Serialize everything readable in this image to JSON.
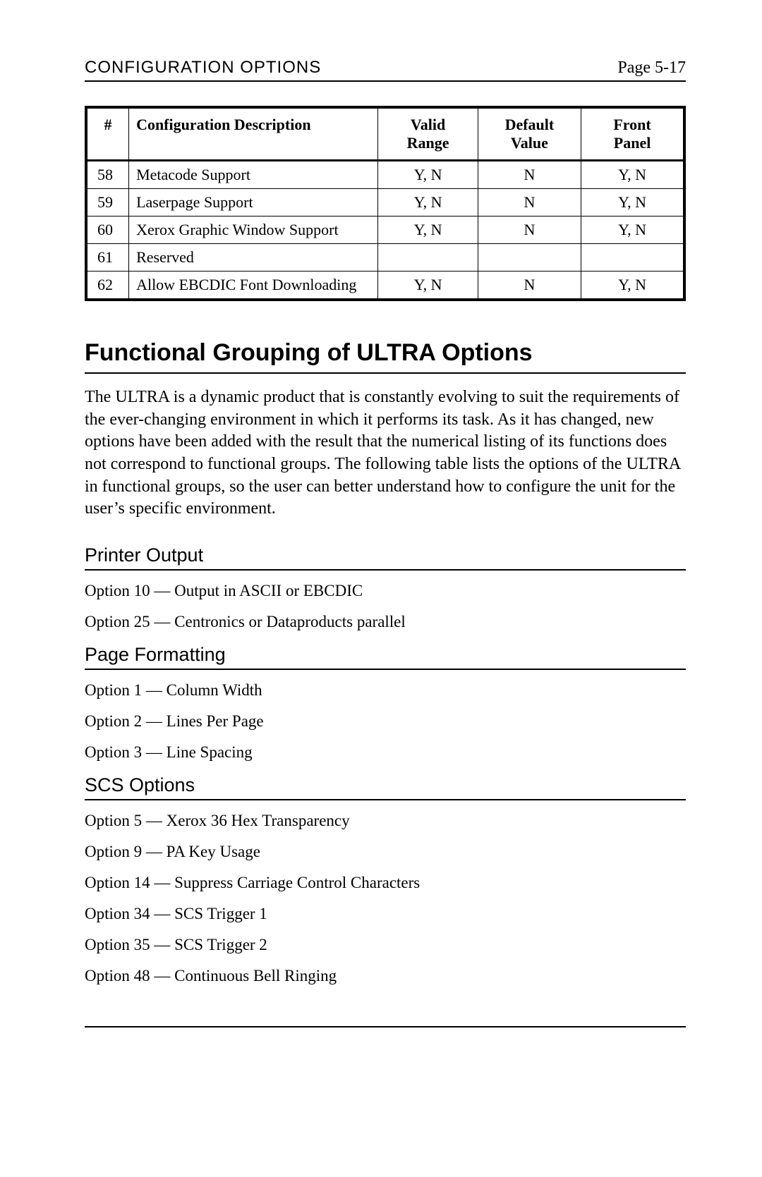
{
  "header": {
    "title": "CONFIGURATION OPTIONS",
    "page_label": "Page 5-17"
  },
  "config_table": {
    "columns": {
      "num": "#",
      "desc": "Configuration Description",
      "range_l1": "Valid",
      "range_l2": "Range",
      "default_l1": "Default",
      "default_l2": "Value",
      "front_l1": "Front",
      "front_l2": "Panel"
    },
    "rows": [
      {
        "num": "58",
        "desc": "Metacode Support",
        "range": "Y, N",
        "default": "N",
        "front": "Y, N"
      },
      {
        "num": "59",
        "desc": "Laserpage Support",
        "range": "Y, N",
        "default": "N",
        "front": "Y, N"
      },
      {
        "num": "60",
        "desc": "Xerox Graphic Window Support",
        "range": "Y, N",
        "default": "N",
        "front": "Y, N"
      },
      {
        "num": "61",
        "desc": "Reserved",
        "range": "",
        "default": "",
        "front": ""
      },
      {
        "num": "62",
        "desc": "Allow EBCDIC Font Downloading",
        "range": "Y, N",
        "default": "N",
        "front": "Y, N"
      }
    ]
  },
  "section_heading": "Functional Grouping of ULTRA Options",
  "intro_paragraph": "The ULTRA is a dynamic product that is constantly evolving to suit the requirements of the ever-changing environment in which it performs its task. As it has changed, new options have been added with the result that the numerical listing of its functions does not correspond to functional groups. The following table lists the options of the ULTRA in functional groups, so the user can better understand how to configure the unit for the user’s specific environment.",
  "groups": {
    "printer_output": {
      "heading": "Printer Output",
      "items": [
        "Option 10 — Output in ASCII or EBCDIC",
        "Option 25 — Centronics or Dataproducts parallel"
      ]
    },
    "page_formatting": {
      "heading": "Page Formatting",
      "items": [
        "Option 1 — Column Width",
        "Option 2 — Lines Per Page",
        "Option 3 — Line Spacing"
      ]
    },
    "scs_options": {
      "heading": "SCS Options",
      "items": [
        "Option 5 — Xerox 36 Hex Transparency",
        "Option 9 — PA Key Usage",
        "Option 14 — Suppress Carriage Control Characters",
        "Option 34 — SCS Trigger 1",
        "Option 35 — SCS Trigger 2",
        "Option 48 — Continuous Bell Ringing"
      ]
    }
  }
}
